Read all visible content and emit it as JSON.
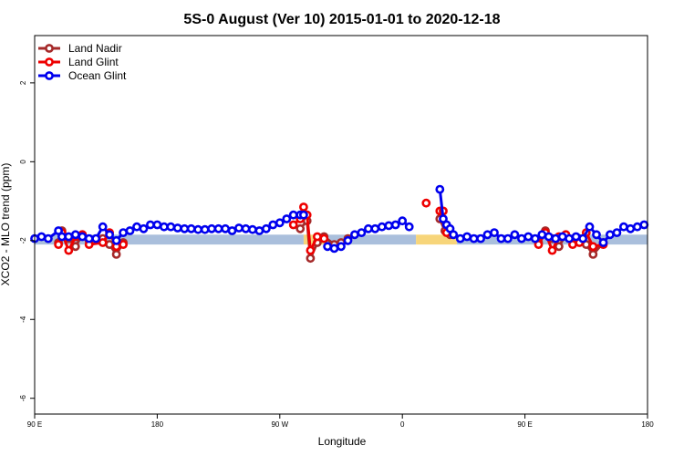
{
  "chart_data": {
    "type": "line",
    "title": "5S-0 August (Ver 10)   2015-01-01 to 2020-12-18",
    "xlabel": "Longitude",
    "ylabel": "XCO2 - MLO trend (ppm)",
    "xlim": [
      90,
      450
    ],
    "ylim": [
      -6.4,
      3.2
    ],
    "x_ticks": [
      {
        "value": 90,
        "label": "90 E"
      },
      {
        "value": 162,
        "label": "180"
      },
      {
        "value": 234,
        "label": "90 W"
      },
      {
        "value": 306,
        "label": "0"
      },
      {
        "value": 378,
        "label": "90 E"
      },
      {
        "value": 450,
        "label": "180"
      }
    ],
    "y_ticks": [
      {
        "value": -6,
        "label": "-6"
      },
      {
        "value": -4,
        "label": "-4"
      },
      {
        "value": -2,
        "label": "-2"
      },
      {
        "value": 0,
        "label": "0"
      },
      {
        "value": 2,
        "label": "2"
      }
    ],
    "grid": false,
    "legend": "top-left",
    "bands": [
      {
        "x0": 90,
        "x1": 248,
        "y0": -2.1,
        "y1": -1.85,
        "color": "#aabfdc"
      },
      {
        "x0": 248,
        "x1": 260,
        "y0": -2.1,
        "y1": -1.85,
        "color": "#f7d57a"
      },
      {
        "x0": 260,
        "x1": 314,
        "y0": -2.1,
        "y1": -1.85,
        "color": "#aabfdc"
      },
      {
        "x0": 314,
        "x1": 338,
        "y0": -2.1,
        "y1": -1.85,
        "color": "#f7d57a"
      },
      {
        "x0": 338,
        "x1": 450,
        "y0": -2.1,
        "y1": -1.85,
        "color": "#aabfdc"
      }
    ],
    "series": [
      {
        "name": "Land Nadir",
        "color": "#a52a2a",
        "segments": [
          {
            "x": [
              104,
              106,
              110,
              114,
              118,
              122,
              130,
              134,
              138,
              142
            ],
            "y": [
              -2.05,
              -1.75,
              -1.95,
              -2.15,
              -1.85,
              -2.0,
              -1.95,
              -2.1,
              -2.35,
              -2.05
            ]
          },
          {
            "x": [
              246,
              250,
              252,
              256,
              260,
              266,
              270,
              274
            ],
            "y": [
              -1.7,
              -1.5,
              -2.45,
              -2.05,
              -1.9,
              -2.1,
              -2.05,
              -1.95
            ]
          },
          {
            "x": [
              328,
              331,
              334
            ],
            "y": [
              -1.45,
              -1.75,
              -1.85
            ]
          },
          {
            "x": [
              386,
              390,
              394,
              398,
              402,
              406,
              410,
              414,
              418,
              424
            ],
            "y": [
              -2.05,
              -1.75,
              -1.95,
              -2.15,
              -1.85,
              -2.0,
              -1.95,
              -2.1,
              -2.35,
              -2.05
            ]
          }
        ]
      },
      {
        "name": "Land Glint",
        "color": "#ee0000",
        "segments": [
          {
            "x": [
              104,
              106,
              110,
              114,
              118,
              122,
              130,
              134,
              138,
              142
            ],
            "y": [
              -2.1,
              -1.8,
              -2.25,
              -1.9,
              -1.85,
              -2.1,
              -2.05,
              -1.8,
              -2.15,
              -2.1
            ]
          },
          {
            "x": [
              242,
              246,
              248,
              250,
              252,
              256,
              260
            ],
            "y": [
              -1.6,
              -1.45,
              -1.15,
              -1.35,
              -2.25,
              -1.9,
              -1.95
            ]
          },
          {
            "x": [
              320
            ],
            "y": [
              -1.05
            ]
          },
          {
            "x": [
              328,
              330,
              332
            ],
            "y": [
              -1.25,
              -1.25,
              -1.8
            ]
          },
          {
            "x": [
              386,
              390,
              394,
              398,
              402,
              406,
              410,
              414,
              418,
              424
            ],
            "y": [
              -2.1,
              -1.8,
              -2.25,
              -1.9,
              -1.85,
              -2.1,
              -2.05,
              -1.8,
              -2.15,
              -2.1
            ]
          }
        ]
      },
      {
        "name": "Ocean Glint",
        "color": "#0000ee",
        "segments": [
          {
            "x": [
              90,
              94,
              98,
              104,
              106,
              110,
              114,
              118,
              122,
              126,
              130,
              134,
              138,
              142,
              146,
              150,
              154,
              158,
              162,
              166,
              170,
              174,
              178,
              182,
              186,
              190,
              194,
              198,
              202,
              206,
              210,
              214,
              218,
              222,
              226,
              230,
              234,
              238,
              242,
              246,
              248
            ],
            "y": [
              -1.95,
              -1.9,
              -1.95,
              -1.75,
              -1.9,
              -1.9,
              -1.85,
              -1.9,
              -1.95,
              -1.95,
              -1.65,
              -1.85,
              -2.0,
              -1.8,
              -1.75,
              -1.65,
              -1.7,
              -1.6,
              -1.6,
              -1.65,
              -1.65,
              -1.68,
              -1.7,
              -1.7,
              -1.72,
              -1.72,
              -1.7,
              -1.7,
              -1.7,
              -1.75,
              -1.68,
              -1.7,
              -1.72,
              -1.75,
              -1.7,
              -1.6,
              -1.55,
              -1.45,
              -1.35,
              -1.35,
              -1.35
            ]
          },
          {
            "x": [
              262,
              266,
              270,
              274,
              278,
              282,
              286,
              290,
              294,
              298,
              302,
              306,
              310
            ],
            "y": [
              -2.15,
              -2.2,
              -2.15,
              -2.0,
              -1.85,
              -1.8,
              -1.7,
              -1.7,
              -1.65,
              -1.62,
              -1.6,
              -1.5,
              -1.65
            ]
          },
          {
            "x": [
              328,
              330,
              332,
              334,
              336,
              340,
              344,
              348,
              352,
              356,
              360,
              364,
              368,
              372,
              376,
              380,
              384,
              388,
              392,
              396,
              400,
              404,
              408,
              412,
              416,
              420,
              424,
              428,
              432,
              436,
              440,
              444,
              448
            ],
            "y": [
              -0.7,
              -1.45,
              -1.6,
              -1.7,
              -1.85,
              -1.95,
              -1.9,
              -1.95,
              -1.95,
              -1.85,
              -1.8,
              -1.95,
              -1.95,
              -1.85,
              -1.95,
              -1.9,
              -1.95,
              -1.85,
              -1.9,
              -1.95,
              -1.9,
              -1.95,
              -1.9,
              -1.95,
              -1.65,
              -1.85,
              -2.05,
              -1.85,
              -1.8,
              -1.65,
              -1.7,
              -1.65,
              -1.6
            ]
          }
        ]
      }
    ]
  }
}
